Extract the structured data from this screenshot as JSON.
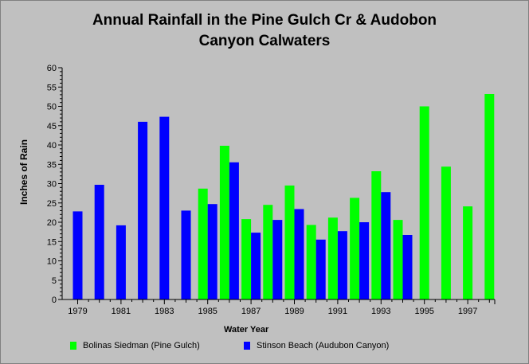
{
  "chart_data": {
    "type": "bar",
    "title": "Annual Rainfall in the Pine Gulch Cr & Audobon Canyon Calwaters",
    "title_lines": [
      "Annual Rainfall in the Pine Gulch Cr & Audobon",
      "Canyon Calwaters"
    ],
    "xlabel": "Water Year",
    "ylabel": "Inches of Rain",
    "ylim": [
      0,
      60
    ],
    "y_ticks": [
      0,
      5,
      10,
      15,
      20,
      25,
      30,
      35,
      40,
      45,
      50,
      55,
      60
    ],
    "x_tick_labels": [
      "1979",
      "1981",
      "1983",
      "1985",
      "1987",
      "1989",
      "1991",
      "1993",
      "1995",
      "1997"
    ],
    "categories": [
      1979,
      1980,
      1981,
      1982,
      1983,
      1984,
      1985,
      1986,
      1987,
      1988,
      1989,
      1990,
      1991,
      1992,
      1993,
      1994,
      1995,
      1996,
      1997,
      1998
    ],
    "legend_position": "bottom",
    "grid": false,
    "series": [
      {
        "name": "Bolinas Siedman (Pine Gulch)",
        "color": "#00ff00",
        "values": [
          null,
          null,
          null,
          null,
          null,
          null,
          28.7,
          39.8,
          20.8,
          24.5,
          29.5,
          19.3,
          21.2,
          26.3,
          33.2,
          20.6,
          50.0,
          34.4,
          24.1,
          53.2
        ]
      },
      {
        "name": "Stinson Beach (Audubon Canyon)",
        "color": "#0000ff",
        "values": [
          22.8,
          29.7,
          19.2,
          46.0,
          47.3,
          23.0,
          24.7,
          35.5,
          17.3,
          20.6,
          23.4,
          15.5,
          17.7,
          20.0,
          27.8,
          16.7,
          null,
          null,
          null,
          null
        ]
      }
    ]
  }
}
